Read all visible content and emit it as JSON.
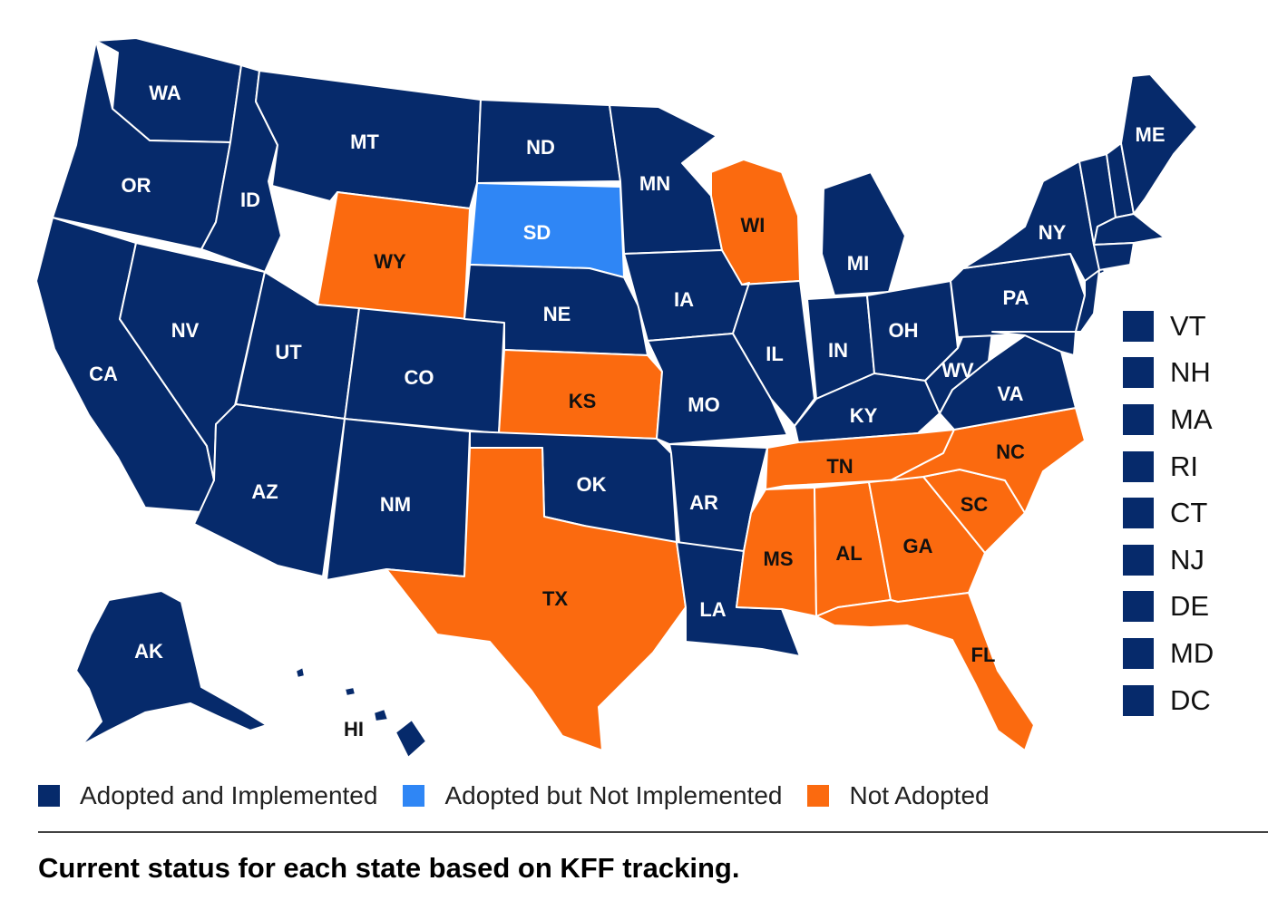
{
  "colors": {
    "adopted_implemented": "#062a6b",
    "adopted_not_implemented": "#2f86f5",
    "not_adopted": "#fb6a0f"
  },
  "states": {
    "WA": "adopted_implemented",
    "OR": "adopted_implemented",
    "CA": "adopted_implemented",
    "ID": "adopted_implemented",
    "NV": "adopted_implemented",
    "MT": "adopted_implemented",
    "WY": "not_adopted",
    "UT": "adopted_implemented",
    "AZ": "adopted_implemented",
    "CO": "adopted_implemented",
    "NM": "adopted_implemented",
    "ND": "adopted_implemented",
    "SD": "adopted_not_implemented",
    "NE": "adopted_implemented",
    "KS": "not_adopted",
    "OK": "adopted_implemented",
    "TX": "not_adopted",
    "MN": "adopted_implemented",
    "IA": "adopted_implemented",
    "MO": "adopted_implemented",
    "AR": "adopted_implemented",
    "LA": "adopted_implemented",
    "WI": "not_adopted",
    "IL": "adopted_implemented",
    "MI": "adopted_implemented",
    "IN": "adopted_implemented",
    "OH": "adopted_implemented",
    "KY": "adopted_implemented",
    "TN": "not_adopted",
    "MS": "not_adopted",
    "AL": "not_adopted",
    "GA": "not_adopted",
    "FL": "not_adopted",
    "SC": "not_adopted",
    "NC": "not_adopted",
    "VA": "adopted_implemented",
    "WV": "adopted_implemented",
    "PA": "adopted_implemented",
    "NY": "adopted_implemented",
    "ME": "adopted_implemented",
    "AK": "adopted_implemented",
    "HI": "adopted_implemented",
    "VT": "adopted_implemented",
    "NH": "adopted_implemented",
    "MA": "adopted_implemented",
    "RI": "adopted_implemented",
    "CT": "adopted_implemented",
    "NJ": "adopted_implemented",
    "DE": "adopted_implemented",
    "MD": "adopted_implemented",
    "DC": "adopted_implemented"
  },
  "small_states": [
    "VT",
    "NH",
    "MA",
    "RI",
    "CT",
    "NJ",
    "DE",
    "MD",
    "DC"
  ],
  "legend": [
    {
      "key": "adopted_implemented",
      "label": "Adopted and Implemented"
    },
    {
      "key": "adopted_not_implemented",
      "label": "Adopted but Not Implemented"
    },
    {
      "key": "not_adopted",
      "label": "Not Adopted"
    }
  ],
  "caption": "Current status for each state based on KFF tracking."
}
